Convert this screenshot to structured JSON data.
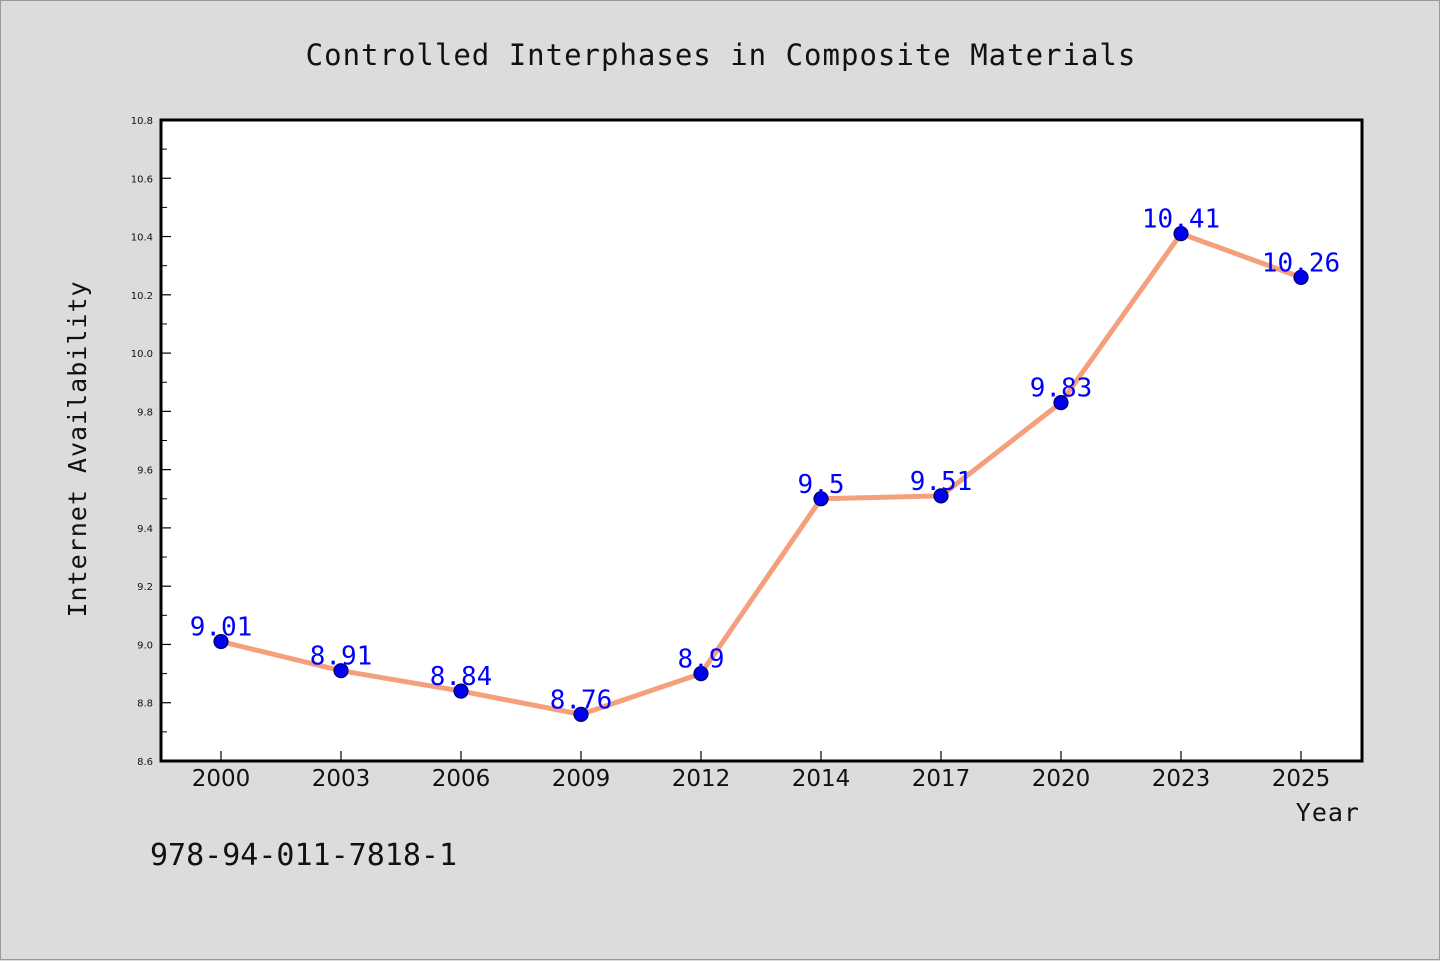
{
  "chart_data": {
    "type": "line",
    "title": "Controlled Interphases in Composite Materials",
    "xlabel": "Year",
    "ylabel": "Internet Availability",
    "categories": [
      "2000",
      "2003",
      "2006",
      "2009",
      "2012",
      "2014",
      "2017",
      "2020",
      "2023",
      "2025"
    ],
    "series": [
      {
        "values": [
          9.01,
          8.91,
          8.84,
          8.76,
          8.9,
          9.5,
          9.51,
          9.83,
          10.41,
          10.26
        ]
      }
    ],
    "data_labels": [
      "9.01",
      "8.91",
      "8.84",
      "8.76",
      "8.9",
      "9.5",
      "9.51",
      "9.83",
      "10.41",
      "10.26"
    ],
    "ylim": [
      8.6,
      10.8
    ],
    "yticks": [
      "8.6",
      "8.8",
      "9.0",
      "9.2",
      "9.4",
      "9.6",
      "9.8",
      "10.0",
      "10.2",
      "10.4",
      "10.6",
      "10.8"
    ],
    "grid": false,
    "legend": "none",
    "colors": {
      "line": "#f4a07c",
      "marker_fill": "#0000ee",
      "marker_stroke": "#000066",
      "data_label": "#0000ff",
      "background": "#dcdcdc",
      "plot_background": "#ffffff"
    }
  },
  "footer": {
    "isbn": "978-94-011-7818-1"
  }
}
